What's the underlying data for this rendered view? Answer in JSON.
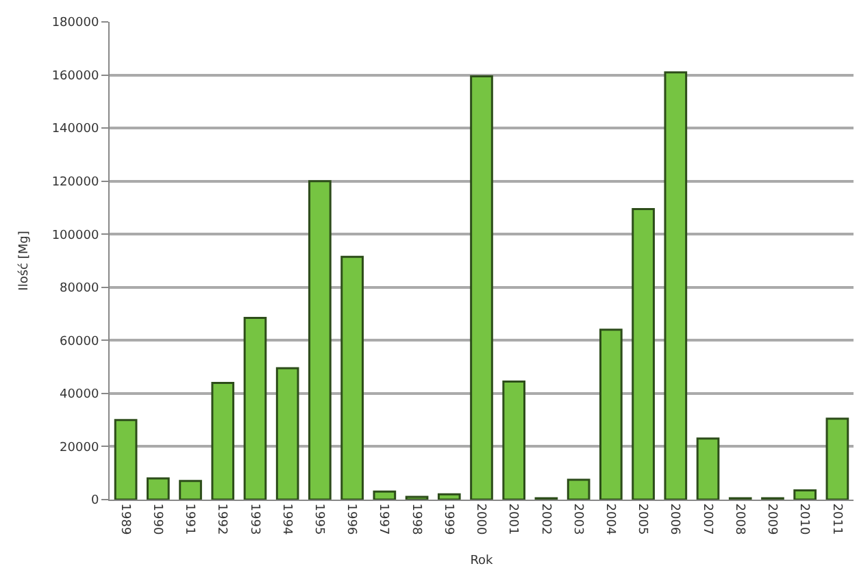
{
  "chart_data": {
    "type": "bar",
    "xlabel": "Rok",
    "ylabel": "Ilość [Mg]",
    "categories": [
      "1989",
      "1990",
      "1991",
      "1992",
      "1993",
      "1994",
      "1995",
      "1996",
      "1997",
      "1998",
      "1999",
      "2000",
      "2001",
      "2002",
      "2003",
      "2004",
      "2005",
      "2006",
      "2007",
      "2008",
      "2009",
      "2010",
      "2011"
    ],
    "values": [
      30000,
      8000,
      7000,
      44000,
      68500,
      49500,
      120000,
      91500,
      3000,
      1000,
      2000,
      159500,
      44500,
      500,
      7500,
      64000,
      109500,
      161000,
      23000,
      500,
      500,
      3500,
      30500
    ],
    "color": "#76c442",
    "ylim": [
      0,
      180000
    ],
    "yticks": [
      0,
      20000,
      40000,
      60000,
      80000,
      100000,
      120000,
      140000,
      160000,
      180000
    ],
    "grid": "y"
  }
}
